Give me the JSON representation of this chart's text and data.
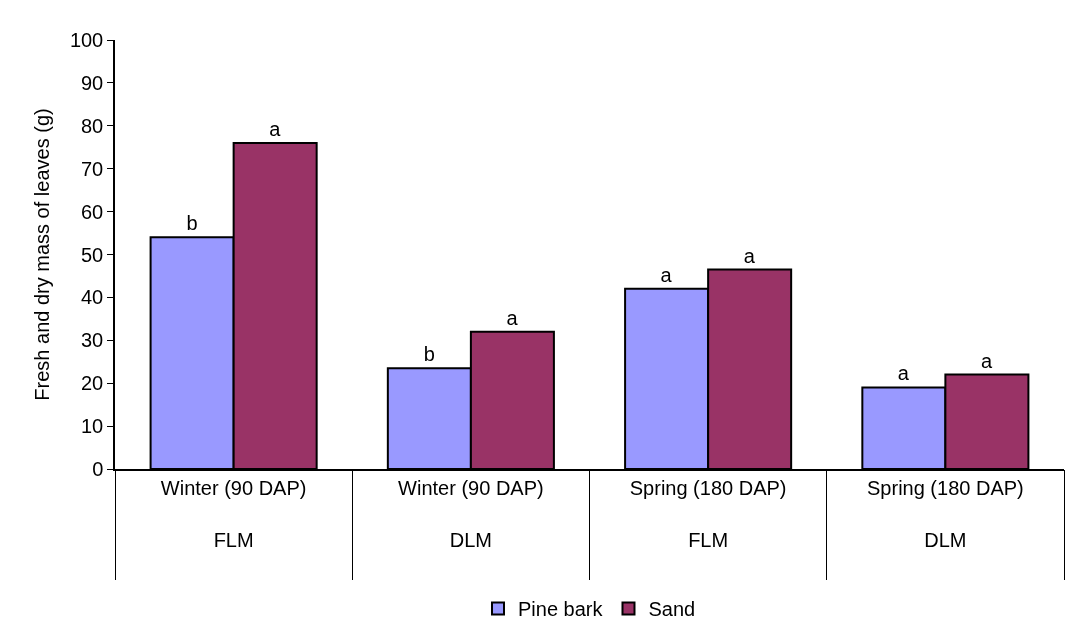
{
  "chart_data": {
    "type": "bar",
    "ylabel": "Fresh and dry mass of leaves (g)",
    "categories": [
      "Winter (90 DAP)\nFLM",
      "Winter (90 DAP)\nDLM",
      "Spring (180 DAP)\nFLM",
      "Spring (180 DAP)\nDLM"
    ],
    "series": [
      {
        "name": "Pine bark",
        "color": "#9999ff",
        "values": [
          54,
          23.5,
          42,
          19
        ],
        "value_labels": [
          "b",
          "b",
          "a",
          "a"
        ]
      },
      {
        "name": "Sand",
        "color": "#993366",
        "values": [
          76,
          32,
          46.5,
          22
        ],
        "value_labels": [
          "a",
          "a",
          "a",
          "a"
        ]
      }
    ],
    "ylim": [
      0,
      100
    ],
    "yticks": [
      0,
      10,
      20,
      30,
      40,
      50,
      60,
      70,
      80,
      90,
      100
    ],
    "grid": false,
    "legend": "bottom"
  }
}
